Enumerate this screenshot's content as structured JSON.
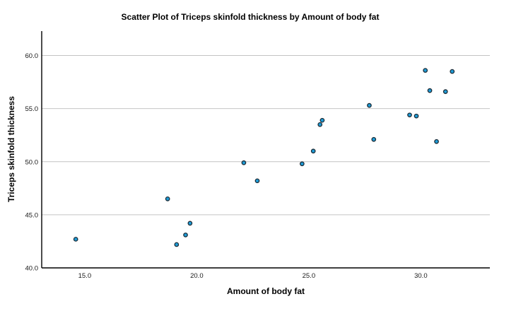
{
  "chart_data": {
    "type": "scatter",
    "title": "Scatter Plot of Triceps skinfold thickness by Amount of body fat",
    "xlabel": "Amount of body fat",
    "ylabel": "Triceps skinfold thickness",
    "xlim": [
      13.08,
      33.08
    ],
    "ylim": [
      40.0,
      62.3
    ],
    "x_ticks": [
      {
        "value": 15.0,
        "label": "15.0"
      },
      {
        "value": 20.0,
        "label": "20.0"
      },
      {
        "value": 25.0,
        "label": "25.0"
      },
      {
        "value": 30.0,
        "label": "30.0"
      }
    ],
    "y_ticks": [
      {
        "value": 40.0,
        "label": "40.0"
      },
      {
        "value": 45.0,
        "label": "45.0"
      },
      {
        "value": 50.0,
        "label": "50.0"
      },
      {
        "value": 55.0,
        "label": "55.0"
      },
      {
        "value": 60.0,
        "label": "60.0"
      }
    ],
    "grid": "horizontal-only",
    "legend": "none",
    "points": [
      [
        19.5,
        43.1
      ],
      [
        24.7,
        49.8
      ],
      [
        30.7,
        51.9
      ],
      [
        29.8,
        54.3
      ],
      [
        19.1,
        42.2
      ],
      [
        25.6,
        53.9
      ],
      [
        31.4,
        58.5
      ],
      [
        27.9,
        52.1
      ],
      [
        22.1,
        49.9
      ],
      [
        25.5,
        53.5
      ],
      [
        31.1,
        56.6
      ],
      [
        30.4,
        56.7
      ],
      [
        18.7,
        46.5
      ],
      [
        19.7,
        44.2
      ],
      [
        14.6,
        42.7
      ],
      [
        29.5,
        54.4
      ],
      [
        27.7,
        55.3
      ],
      [
        30.2,
        58.6
      ],
      [
        22.7,
        48.2
      ],
      [
        25.2,
        51.0
      ]
    ]
  },
  "style": {
    "marker_fill": "#1E9CD7",
    "marker_stroke": "#1C2B36",
    "gridline_color": "#C4C4C4",
    "axis_color": "#000000",
    "tick_label_color": "#1A1A1A"
  }
}
